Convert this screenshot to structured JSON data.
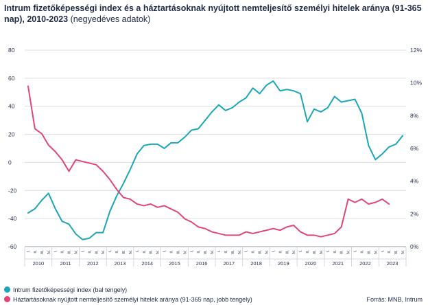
{
  "header": {
    "title_bold": "Intrum fizetőképességi index és a háztartásoknak nyújtott nemteljesítő személyi hitelek aránya (91-365 nap), 2010-2023",
    "title_light": "(negyedéves adatok)"
  },
  "legend": {
    "series1": "Intrum fizetőképességi index (bal tengely)",
    "series2": "Háztartásoknak nyújtott nemteljesítő személyi hitelek aránya (91-365 nap, jobb tengely)"
  },
  "source": "Forrás: MNB, Intrum",
  "colors": {
    "teal": "#1aa6b7",
    "pink": "#e0457b",
    "grid": "#d9dce3",
    "text": "#1f2a44"
  },
  "chart_data": {
    "type": "line",
    "title": "Intrum fizetőképességi index és a háztartásoknak nyújtott nemteljesítő személyi hitelek aránya (91-365 nap), 2010-2023",
    "quarters": [
      "I.",
      "II.",
      "III.",
      "IV."
    ],
    "years": [
      "2010",
      "2011",
      "2012",
      "2013",
      "2014",
      "2015",
      "2016",
      "2017",
      "2018",
      "2019",
      "2020",
      "2021",
      "2022",
      "2023"
    ],
    "left_axis": {
      "min": -60,
      "max": 80,
      "step": 20,
      "ticks": [
        "-60",
        "-40",
        "-20",
        "0",
        "20",
        "40",
        "60",
        "80"
      ]
    },
    "right_axis": {
      "min": 0,
      "max": 12,
      "step": 2,
      "ticks": [
        "0%",
        "2%",
        "4%",
        "6%",
        "8%",
        "10%",
        "12%"
      ]
    },
    "grid": "horizontal",
    "legend_position": "bottom-left",
    "series": [
      {
        "name": "Intrum fizetőképességi index (bal tengely)",
        "axis": "left",
        "color": "#1aa6b7",
        "values": [
          -36,
          -33,
          -27,
          -22,
          -33,
          -42,
          -44,
          -51,
          -55,
          -54,
          -50,
          -50,
          -35,
          -24,
          -15,
          -5,
          6,
          12,
          13,
          13,
          10,
          14,
          14,
          18,
          23,
          24,
          30,
          36,
          41,
          37,
          39,
          43,
          46,
          53,
          49,
          55,
          58,
          51,
          52,
          51,
          49,
          29,
          38,
          36,
          39,
          47,
          43,
          44,
          45,
          35,
          12,
          2,
          6,
          11,
          13,
          19
        ]
      },
      {
        "name": "Háztartásoknak nyújtott nemteljesítő személyi hitelek aránya (91-365 nap, jobb tengely)",
        "axis": "right",
        "color": "#e0457b",
        "values": [
          9.8,
          7.2,
          6.9,
          6.2,
          5.8,
          5.3,
          4.6,
          5.3,
          5.2,
          5.1,
          5.0,
          4.6,
          4.1,
          3.5,
          3.0,
          2.9,
          2.6,
          2.5,
          2.6,
          2.4,
          2.5,
          2.3,
          2.1,
          1.7,
          1.5,
          1.2,
          1.1,
          0.9,
          0.8,
          0.7,
          0.7,
          0.7,
          0.9,
          0.8,
          0.9,
          1.0,
          1.1,
          1.0,
          1.2,
          1.3,
          0.9,
          0.7,
          0.7,
          0.6,
          0.7,
          0.8,
          1.2,
          2.9,
          2.7,
          2.9,
          2.6,
          2.7,
          2.9,
          2.6
        ]
      }
    ]
  }
}
